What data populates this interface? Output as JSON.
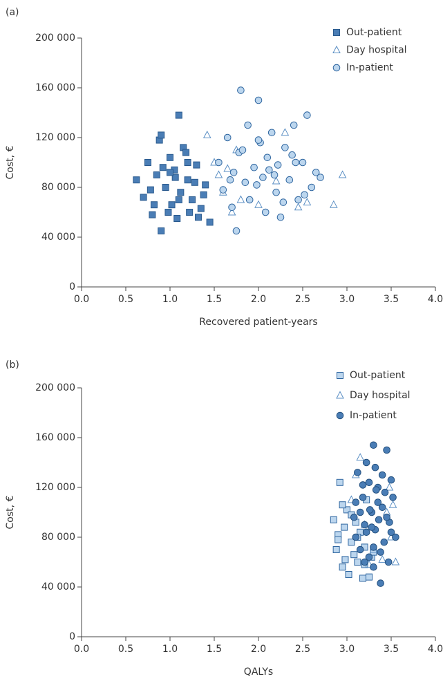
{
  "chart_data": [
    {
      "type": "scatter",
      "panel_label": "(a)",
      "xlabel": "Recovered patient-years",
      "ylabel": "Cost, €",
      "xlim": [
        0,
        4
      ],
      "ylim": [
        0,
        200000
      ],
      "xticks": [
        {
          "value": 0,
          "label": "0.0"
        },
        {
          "value": 0.5,
          "label": "0.5"
        },
        {
          "value": 1,
          "label": "1.0"
        },
        {
          "value": 1.5,
          "label": "1.5"
        },
        {
          "value": 2,
          "label": "2.0"
        },
        {
          "value": 2.5,
          "label": "2.5"
        },
        {
          "value": 3,
          "label": "3.0"
        },
        {
          "value": 3.5,
          "label": "3.5"
        },
        {
          "value": 4,
          "label": "4.0"
        }
      ],
      "yticks": [
        0,
        {
          "value": 40000,
          "label": "40 000"
        },
        {
          "value": 80000,
          "label": "80 000"
        },
        {
          "value": 120000,
          "label": "120 000"
        },
        {
          "value": 160000,
          "label": "160 000"
        },
        {
          "value": 200000,
          "label": "200 000"
        }
      ],
      "draw_order": [
        1,
        0,
        2
      ],
      "series": [
        {
          "name": "Out-patient",
          "marker": "square",
          "color": "#4a7db5",
          "stroke": "#2a5a8e",
          "x": [
            0.62,
            0.7,
            0.75,
            0.8,
            0.85,
            0.88,
            0.9,
            0.95,
            1.0,
            1.02,
            1.05,
            1.08,
            1.1,
            1.12,
            1.15,
            1.2,
            1.22,
            1.25,
            1.3,
            1.35,
            1.4,
            1.45,
            0.78,
            0.92,
            0.98,
            1.18,
            1.28,
            1.38,
            0.82,
            1.06,
            1.1,
            0.9,
            1.0,
            1.2,
            1.32
          ],
          "values": [
            86000,
            72000,
            100000,
            58000,
            90000,
            118000,
            45000,
            80000,
            104000,
            66000,
            94000,
            55000,
            138000,
            76000,
            112000,
            86000,
            60000,
            70000,
            98000,
            63000,
            82000,
            52000,
            78000,
            96000,
            60000,
            108000,
            84000,
            74000,
            66000,
            88000,
            70000,
            122000,
            92000,
            100000,
            56000
          ]
        },
        {
          "name": "Day hospital",
          "marker": "triangle",
          "color": "none",
          "stroke": "#5b8fc4",
          "x": [
            1.42,
            1.5,
            1.55,
            1.6,
            1.7,
            1.75,
            1.8,
            2.0,
            2.2,
            2.3,
            2.45,
            2.55,
            2.85,
            2.95,
            1.65
          ],
          "values": [
            122000,
            100000,
            90000,
            76000,
            60000,
            110000,
            70000,
            66000,
            85000,
            124000,
            64000,
            68000,
            66000,
            90000,
            95000
          ]
        },
        {
          "name": "In-patient",
          "marker": "circle",
          "color": "#bcd6ee",
          "stroke": "#2f66a0",
          "x": [
            1.55,
            1.6,
            1.65,
            1.7,
            1.72,
            1.75,
            1.78,
            1.8,
            1.85,
            1.88,
            1.9,
            1.95,
            2.0,
            2.02,
            2.05,
            2.08,
            2.1,
            2.15,
            2.2,
            2.22,
            2.25,
            2.3,
            2.35,
            2.4,
            2.45,
            2.5,
            2.55,
            2.6,
            2.65,
            2.7,
            1.82,
            1.98,
            2.12,
            2.28,
            2.38,
            2.52,
            1.68,
            2.0,
            2.18,
            2.42
          ],
          "values": [
            100000,
            78000,
            120000,
            64000,
            92000,
            45000,
            108000,
            158000,
            84000,
            130000,
            70000,
            96000,
            150000,
            116000,
            88000,
            60000,
            104000,
            124000,
            76000,
            98000,
            56000,
            112000,
            86000,
            130000,
            70000,
            100000,
            138000,
            80000,
            92000,
            88000,
            110000,
            82000,
            94000,
            68000,
            106000,
            74000,
            86000,
            118000,
            90000,
            100000
          ]
        }
      ]
    },
    {
      "type": "scatter",
      "panel_label": "(b)",
      "xlabel": "QALYs",
      "ylabel": "Cost, €",
      "xlim": [
        0,
        4
      ],
      "ylim": [
        0,
        200000
      ],
      "xticks": [
        {
          "value": 0,
          "label": "0.0"
        },
        {
          "value": 0.5,
          "label": "0.5"
        },
        {
          "value": 1,
          "label": "1.0"
        },
        {
          "value": 1.5,
          "label": "1.5"
        },
        {
          "value": 2,
          "label": "2.0"
        },
        {
          "value": 2.5,
          "label": "2.5"
        },
        {
          "value": 3,
          "label": "3.0"
        },
        {
          "value": 3.5,
          "label": "3.5"
        },
        {
          "value": 4,
          "label": "4.0"
        }
      ],
      "yticks": [
        0,
        {
          "value": 40000,
          "label": "40 000"
        },
        {
          "value": 80000,
          "label": "80 000"
        },
        {
          "value": 120000,
          "label": "120 000"
        },
        {
          "value": 160000,
          "label": "160 000"
        },
        {
          "value": 200000,
          "label": "200 000"
        }
      ],
      "draw_order": [
        0,
        1,
        2
      ],
      "series": [
        {
          "name": "Out-patient",
          "marker": "square",
          "color": "#bcd6ee",
          "stroke": "#2f66a0",
          "x": [
            2.85,
            2.88,
            2.9,
            2.92,
            2.95,
            2.97,
            3.0,
            3.02,
            3.05,
            3.08,
            3.1,
            3.12,
            3.15,
            3.18,
            3.2,
            3.22,
            3.25,
            3.28,
            2.9,
            2.98,
            3.05,
            3.12,
            3.2,
            2.95,
            3.3
          ],
          "values": [
            94000,
            70000,
            82000,
            124000,
            56000,
            88000,
            102000,
            50000,
            76000,
            66000,
            92000,
            60000,
            84000,
            47000,
            72000,
            110000,
            48000,
            64000,
            78000,
            62000,
            98000,
            80000,
            58000,
            106000,
            68000
          ]
        },
        {
          "name": "Day hospital",
          "marker": "triangle",
          "color": "none",
          "stroke": "#5b8fc4",
          "x": [
            3.05,
            3.1,
            3.15,
            3.2,
            3.3,
            3.4,
            3.45,
            3.5,
            3.55,
            3.52,
            3.25,
            3.48
          ],
          "values": [
            110000,
            130000,
            144000,
            90000,
            70000,
            62000,
            100000,
            80000,
            60000,
            106000,
            58000,
            120000
          ]
        },
        {
          "name": "In-patient",
          "marker": "circle",
          "color": "#4a7db5",
          "stroke": "#23507f",
          "x": [
            3.08,
            3.1,
            3.12,
            3.15,
            3.18,
            3.2,
            3.22,
            3.25,
            3.28,
            3.3,
            3.32,
            3.35,
            3.38,
            3.4,
            3.42,
            3.45,
            3.48,
            3.5,
            3.52,
            3.55,
            3.15,
            3.2,
            3.25,
            3.3,
            3.35,
            3.4,
            3.45,
            3.1,
            3.28,
            3.33,
            3.38,
            3.43,
            3.22,
            3.3,
            3.36,
            3.5,
            3.18,
            3.26,
            3.32,
            3.47
          ],
          "values": [
            96000,
            80000,
            132000,
            70000,
            112000,
            90000,
            140000,
            64000,
            100000,
            154000,
            86000,
            120000,
            43000,
            104000,
            76000,
            150000,
            92000,
            84000,
            112000,
            80000,
            100000,
            60000,
            124000,
            72000,
            108000,
            130000,
            96000,
            108000,
            88000,
            118000,
            68000,
            116000,
            84000,
            56000,
            94000,
            126000,
            122000,
            102000,
            136000,
            60000
          ]
        }
      ]
    }
  ]
}
